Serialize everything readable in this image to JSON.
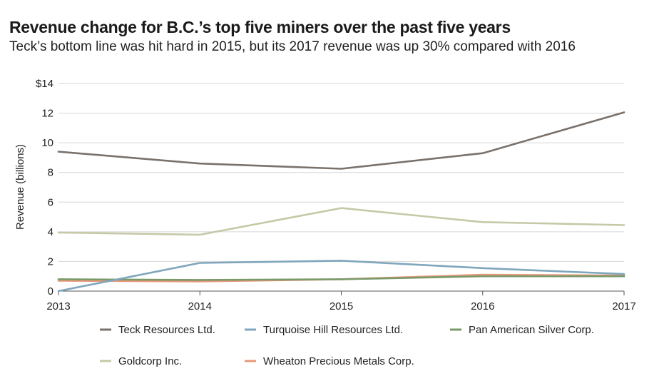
{
  "chart_data": {
    "type": "line",
    "title": "Revenue change for B.C.’s top five miners over the past five years",
    "subtitle": "Teck’s bottom line was hit hard in 2015, but its 2017 revenue was up 30% compared with 2016",
    "ylabel": "Revenue (billions)",
    "xlabel": "",
    "x": [
      "2013",
      "2014",
      "2015",
      "2016",
      "2017"
    ],
    "ylim": [
      0,
      14
    ],
    "yticks": [
      0,
      2,
      4,
      6,
      8,
      10,
      12,
      14
    ],
    "ytick_labels": [
      "0",
      "2",
      "4",
      "6",
      "8",
      "10",
      "12",
      "$14"
    ],
    "grid": true,
    "legend_position": "bottom",
    "series": [
      {
        "name": "Teck Resources Ltd.",
        "color": "#7a716b",
        "values": [
          9.4,
          8.6,
          8.25,
          9.3,
          12.05
        ]
      },
      {
        "name": "Turquoise Hill Resources Ltd.",
        "color": "#7fa6bd",
        "values": [
          0.0,
          1.9,
          2.05,
          1.55,
          1.15
        ]
      },
      {
        "name": "Pan American Silver Corp.",
        "color": "#7a9a6a",
        "values": [
          0.8,
          0.75,
          0.8,
          1.0,
          1.0
        ]
      },
      {
        "name": "Goldcorp Inc.",
        "color": "#c6c8a6",
        "values": [
          3.95,
          3.8,
          5.6,
          4.65,
          4.45
        ]
      },
      {
        "name": "Wheaton Precious Metals Corp.",
        "color": "#e8997a",
        "values": [
          0.7,
          0.65,
          0.8,
          1.1,
          1.05
        ]
      }
    ]
  }
}
